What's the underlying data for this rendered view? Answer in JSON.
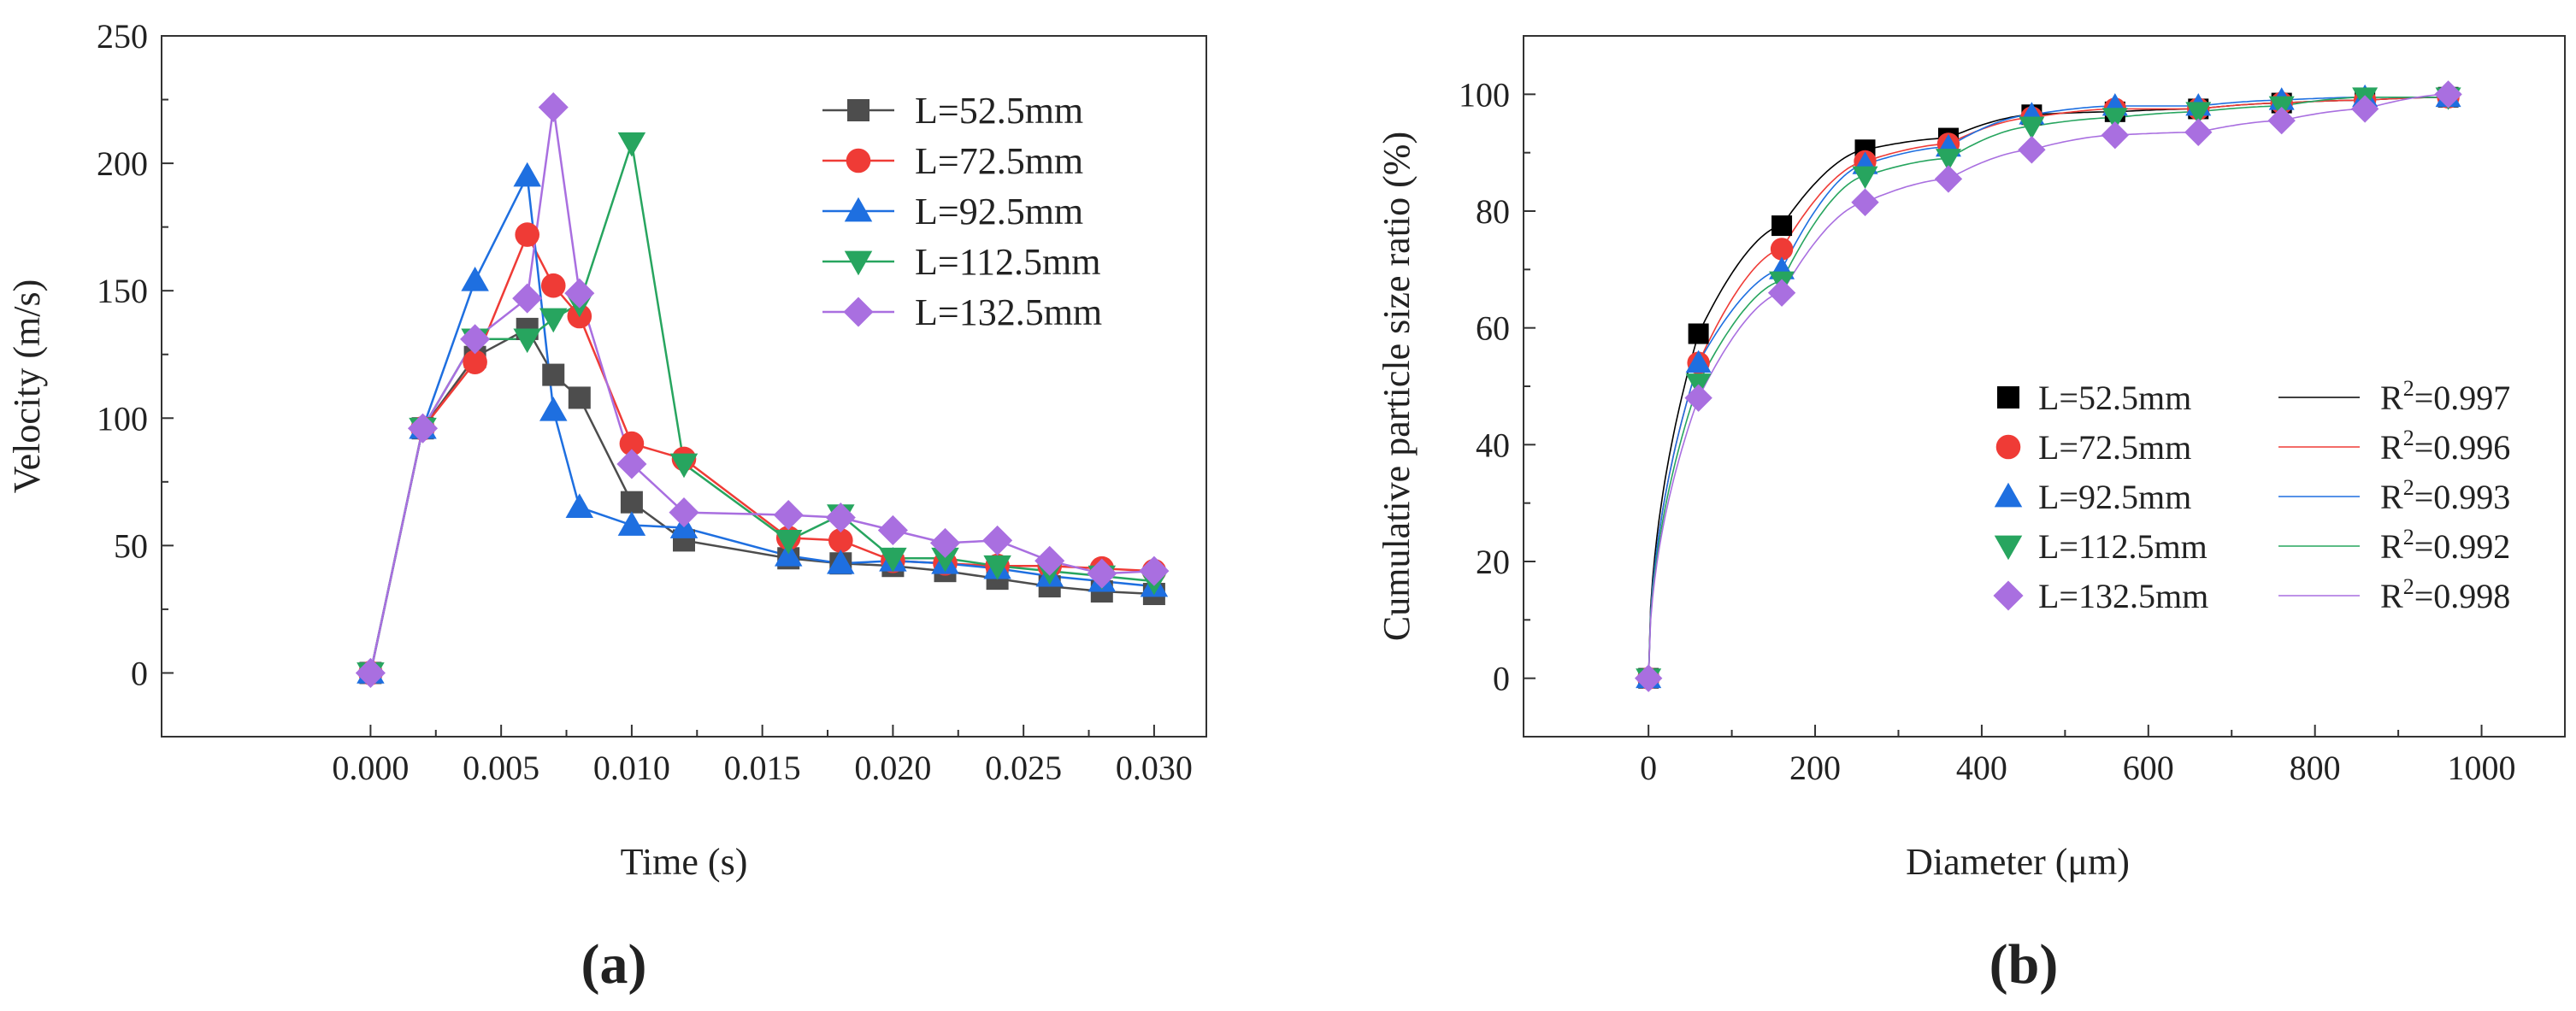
{
  "figure": {
    "panel_labels": [
      "(a)",
      "(b)"
    ]
  },
  "chart_data": [
    {
      "type": "line",
      "panel": "(a)",
      "title": "",
      "xlabel": "Time (s)",
      "ylabel": "Velocity (m/s)",
      "xlim": [
        -0.008,
        0.032
      ],
      "ylim": [
        -25,
        250
      ],
      "xticks": [
        "0.000",
        "0.005",
        "0.010",
        "0.015",
        "0.020",
        "0.025",
        "0.030"
      ],
      "xtick_values": [
        0,
        0.005,
        0.01,
        0.015,
        0.02,
        0.025,
        0.03
      ],
      "yticks": [
        "0",
        "50",
        "100",
        "150",
        "200",
        "250"
      ],
      "ytick_values": [
        0,
        50,
        100,
        150,
        200,
        250
      ],
      "legend_position": "top-right",
      "series": [
        {
          "name": "L=52.5mm",
          "color": "#4d4d4d",
          "marker": "square",
          "x": [
            0,
            0.002,
            0.004,
            0.006,
            0.007,
            0.008,
            0.01,
            0.012,
            0.016,
            0.018,
            0.02,
            0.022,
            0.024,
            0.026,
            0.028,
            0.03
          ],
          "y": [
            0,
            96,
            124,
            135,
            117,
            108,
            67,
            52,
            45,
            43,
            42,
            40,
            37,
            34,
            32,
            31
          ]
        },
        {
          "name": "L=72.5mm",
          "color": "#ef3b36",
          "marker": "circle",
          "x": [
            0,
            0.002,
            0.004,
            0.006,
            0.007,
            0.008,
            0.01,
            0.012,
            0.016,
            0.018,
            0.02,
            0.022,
            0.024,
            0.026,
            0.028,
            0.03
          ],
          "y": [
            0,
            96,
            122,
            172,
            152,
            140,
            90,
            84,
            53,
            52,
            44,
            43,
            42,
            42,
            41,
            40
          ]
        },
        {
          "name": "L=92.5mm",
          "color": "#1e6fe0",
          "marker": "triangle-up",
          "x": [
            0,
            0.002,
            0.004,
            0.006,
            0.007,
            0.008,
            0.01,
            0.012,
            0.016,
            0.018,
            0.02,
            0.022,
            0.024,
            0.026,
            0.028,
            0.03
          ],
          "y": [
            0,
            96,
            154,
            195,
            103,
            65,
            58,
            57,
            46,
            43,
            44,
            43,
            41,
            38,
            36,
            34
          ]
        },
        {
          "name": "L=112.5mm",
          "color": "#27a55f",
          "marker": "triangle-down",
          "x": [
            0,
            0.002,
            0.004,
            0.006,
            0.007,
            0.008,
            0.01,
            0.012,
            0.016,
            0.018,
            0.02,
            0.022,
            0.024,
            0.026,
            0.028,
            0.03
          ],
          "y": [
            0,
            96,
            131,
            131,
            139,
            145,
            208,
            82,
            52,
            62,
            45,
            45,
            42,
            40,
            38,
            36
          ]
        },
        {
          "name": "L=132.5mm",
          "color": "#a96fe0",
          "marker": "diamond",
          "x": [
            0,
            0.002,
            0.004,
            0.006,
            0.007,
            0.008,
            0.01,
            0.012,
            0.016,
            0.018,
            0.02,
            0.022,
            0.024,
            0.026,
            0.028,
            0.03
          ],
          "y": [
            0,
            96,
            131,
            147,
            222,
            149,
            82,
            63,
            62,
            61,
            56,
            51,
            52,
            44,
            39,
            40
          ]
        }
      ]
    },
    {
      "type": "scatter",
      "panel": "(b)",
      "title": "",
      "xlabel": "Diameter (μm)",
      "ylabel": "Cumulative particle size ratio (%)",
      "xlim": [
        -150,
        1100
      ],
      "ylim": [
        -10,
        110
      ],
      "xticks": [
        "0",
        "200",
        "400",
        "600",
        "800",
        "1000"
      ],
      "xtick_values": [
        0,
        200,
        400,
        600,
        800,
        1000
      ],
      "yticks": [
        "0",
        "20",
        "40",
        "60",
        "80",
        "100"
      ],
      "ytick_values": [
        0,
        20,
        40,
        60,
        80,
        100
      ],
      "legend_position": "bottom-right",
      "series": [
        {
          "name": "L=52.5mm",
          "color": "#000000",
          "marker": "square",
          "fit_label": "R²=0.997",
          "fit_base": "R",
          "fit_sup": "2",
          "fit_value": "=0.997",
          "fit_color": "#000000",
          "x": [
            0,
            60,
            160,
            260,
            360,
            460,
            560,
            660,
            760,
            860,
            960
          ],
          "y": [
            0,
            59,
            77.5,
            90.5,
            92.5,
            96.5,
            97,
            97.5,
            98.5,
            99,
            99.5
          ]
        },
        {
          "name": "L=72.5mm",
          "color": "#ef3b36",
          "marker": "circle",
          "fit_label": "R²=0.996",
          "fit_base": "R",
          "fit_sup": "2",
          "fit_value": "=0.996",
          "fit_color": "#ef3b36",
          "x": [
            0,
            60,
            160,
            260,
            360,
            460,
            560,
            660,
            760,
            860,
            960
          ],
          "y": [
            0,
            54,
            73.5,
            88.5,
            91.5,
            96,
            97.5,
            97.5,
            98.5,
            99,
            99.5
          ]
        },
        {
          "name": "L=92.5mm",
          "color": "#1e6fe0",
          "marker": "triangle-up",
          "fit_label": "R²=0.993",
          "fit_base": "R",
          "fit_sup": "2",
          "fit_value": "=0.993",
          "fit_color": "#1e6fe0",
          "x": [
            0,
            60,
            160,
            260,
            360,
            460,
            560,
            660,
            760,
            860,
            960
          ],
          "y": [
            0,
            54,
            70,
            88,
            91,
            96.5,
            98,
            98,
            99,
            99.5,
            99.5
          ]
        },
        {
          "name": "L=112.5mm",
          "color": "#27a55f",
          "marker": "triangle-down",
          "fit_label": "R²=0.992",
          "fit_base": "R",
          "fit_sup": "2",
          "fit_value": "=0.992",
          "fit_color": "#27a55f",
          "x": [
            0,
            60,
            160,
            260,
            360,
            460,
            560,
            660,
            760,
            860,
            960
          ],
          "y": [
            0,
            50.5,
            68,
            86,
            89,
            94.5,
            96,
            97,
            98,
            99.5,
            99.5
          ]
        },
        {
          "name": "L=132.5mm",
          "color": "#a96fe0",
          "marker": "diamond",
          "fit_label": "R²=0.998",
          "fit_base": "R",
          "fit_sup": "2",
          "fit_value": "=0.998",
          "fit_color": "#a96fe0",
          "x": [
            0,
            60,
            160,
            260,
            360,
            460,
            560,
            660,
            760,
            860,
            960
          ],
          "y": [
            0,
            48,
            66,
            81.5,
            85.5,
            90.5,
            93,
            93.5,
            95.5,
            97.5,
            100
          ]
        }
      ]
    }
  ]
}
